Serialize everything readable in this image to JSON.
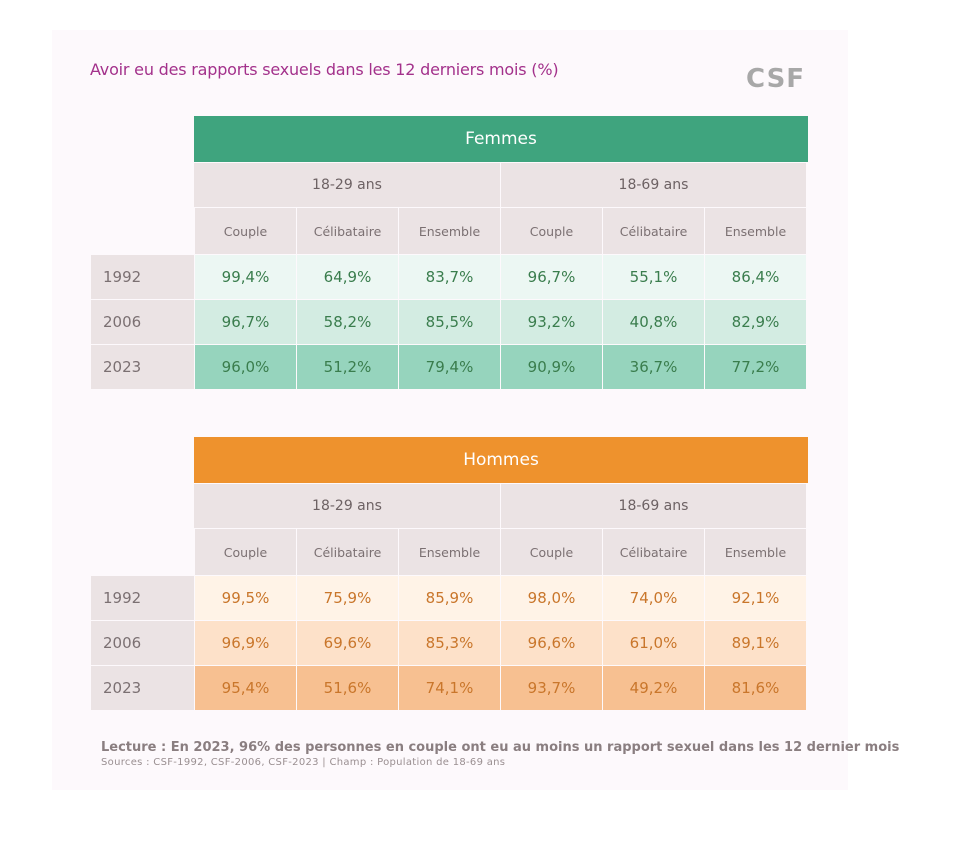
{
  "title": "Avoir eu des rapports sexuels dans les 12 derniers mois (%)",
  "logo": "CSF",
  "colors": {
    "femmes_band": "#3fa47e",
    "hommes_band": "#ee922d",
    "femmes_rows": [
      "#ecf7f3",
      "#d3ece2",
      "#96d4bd"
    ],
    "hommes_rows": [
      "#fff3e7",
      "#fde1c9",
      "#f7c091"
    ],
    "femmes_text": "#3a7d4d",
    "hommes_text": "#c9762b"
  },
  "chart_data": [
    {
      "type": "table",
      "group": "Femmes",
      "age_groups": [
        "18-29 ans",
        "18-69 ans"
      ],
      "columns": [
        "Couple",
        "Célibataire",
        "Ensemble",
        "Couple",
        "Célibataire",
        "Ensemble"
      ],
      "rows": [
        {
          "year": "1992",
          "values": [
            "99,4%",
            "64,9%",
            "83,7%",
            "96,7%",
            "55,1%",
            "86,4%"
          ]
        },
        {
          "year": "2006",
          "values": [
            "96,7%",
            "58,2%",
            "85,5%",
            "93,2%",
            "40,8%",
            "82,9%"
          ]
        },
        {
          "year": "2023",
          "values": [
            "96,0%",
            "51,2%",
            "79,4%",
            "90,9%",
            "36,7%",
            "77,2%"
          ]
        }
      ]
    },
    {
      "type": "table",
      "group": "Hommes",
      "age_groups": [
        "18-29 ans",
        "18-69 ans"
      ],
      "columns": [
        "Couple",
        "Célibataire",
        "Ensemble",
        "Couple",
        "Célibataire",
        "Ensemble"
      ],
      "rows": [
        {
          "year": "1992",
          "values": [
            "99,5%",
            "75,9%",
            "85,9%",
            "98,0%",
            "74,0%",
            "92,1%"
          ]
        },
        {
          "year": "2006",
          "values": [
            "96,9%",
            "69,6%",
            "85,3%",
            "96,6%",
            "61,0%",
            "89,1%"
          ]
        },
        {
          "year": "2023",
          "values": [
            "95,4%",
            "51,6%",
            "74,1%",
            "93,7%",
            "49,2%",
            "81,6%"
          ]
        }
      ]
    }
  ],
  "footer": {
    "lecture": "Lecture : En 2023, 96% des personnes en couple ont eu au moins un rapport sexuel dans les 12 dernier mois",
    "sources": "Sources : CSF-1992, CSF-2006, CSF-2023 | Champ : Population de 18-69 ans"
  }
}
